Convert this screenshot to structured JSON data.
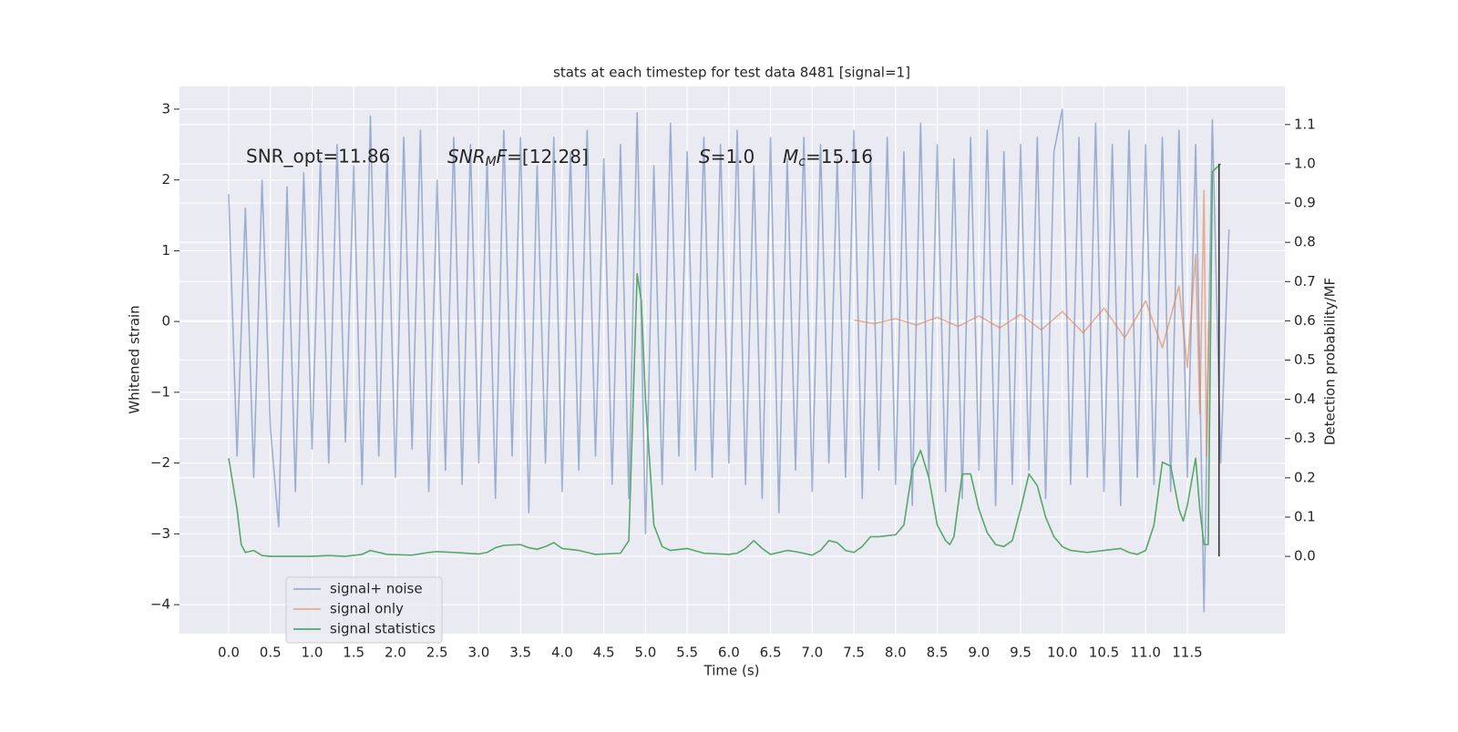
{
  "chart_data": {
    "type": "line",
    "title": "stats at each timestep for test data 8481 [signal=1]",
    "xlabel": "Time (s)",
    "ylabel": "Whitened strain",
    "y2label": "Detection probability/MF",
    "annotations": [
      "SNR_opt=11.86",
      [
        "SNR",
        "M",
        "F",
        "=[12.28]"
      ],
      [
        "S",
        "=1.0"
      ],
      [
        "M",
        "c",
        "=15.16"
      ]
    ],
    "xlim": [
      -0.59,
      12.67
    ],
    "ylim": [
      -4.41,
      3.32
    ],
    "y2lim": [
      -0.197,
      1.197
    ],
    "xticks": [
      {
        "value": 0,
        "label": "0.0"
      },
      {
        "value": 0.5,
        "label": "0.5"
      },
      {
        "value": 1,
        "label": "1.0"
      },
      {
        "value": 1.5,
        "label": "1.5"
      },
      {
        "value": 2,
        "label": "2.0"
      },
      {
        "value": 2.5,
        "label": "2.5"
      },
      {
        "value": 3,
        "label": "3.0"
      },
      {
        "value": 3.5,
        "label": "3.5"
      },
      {
        "value": 4,
        "label": "4.0"
      },
      {
        "value": 4.5,
        "label": "4.5"
      },
      {
        "value": 5,
        "label": "5.0"
      },
      {
        "value": 5.5,
        "label": "5.5"
      },
      {
        "value": 6,
        "label": "6.0"
      },
      {
        "value": 6.5,
        "label": "6.5"
      },
      {
        "value": 7,
        "label": "7.0"
      },
      {
        "value": 7.5,
        "label": "7.5"
      },
      {
        "value": 8,
        "label": "8.0"
      },
      {
        "value": 8.5,
        "label": "8.5"
      },
      {
        "value": 9,
        "label": "9.0"
      },
      {
        "value": 9.5,
        "label": "9.5"
      },
      {
        "value": 10,
        "label": "10.0"
      },
      {
        "value": 10.5,
        "label": "10.5"
      },
      {
        "value": 11,
        "label": "11.0"
      },
      {
        "value": 11.5,
        "label": "11.5"
      }
    ],
    "yticks": [
      {
        "value": -4,
        "label": "−4"
      },
      {
        "value": -3,
        "label": "−3"
      },
      {
        "value": -2,
        "label": "−2"
      },
      {
        "value": -1,
        "label": "−1"
      },
      0,
      1,
      2,
      3
    ],
    "y2ticks": [
      {
        "value": 0,
        "label": "0.0"
      },
      {
        "value": 0.1,
        "label": "0.1"
      },
      {
        "value": 0.2,
        "label": "0.2"
      },
      {
        "value": 0.3,
        "label": "0.3"
      },
      {
        "value": 0.4,
        "label": "0.4"
      },
      {
        "value": 0.5,
        "label": "0.5"
      },
      {
        "value": 0.6,
        "label": "0.6"
      },
      {
        "value": 0.7,
        "label": "0.7"
      },
      {
        "value": 0.8,
        "label": "0.8"
      },
      {
        "value": 0.9,
        "label": "0.9"
      },
      {
        "value": 1,
        "label": "1.0"
      },
      {
        "value": 1.1,
        "label": "1.1"
      }
    ],
    "grid": true,
    "series": [
      {
        "name": "signal+ noise",
        "color": "#4c72b0",
        "opacity": 0.5,
        "x": [
          0,
          0.1,
          0.2,
          0.3,
          0.4,
          0.5,
          0.6,
          0.7,
          0.8,
          0.9,
          1,
          1.1,
          1.2,
          1.3,
          1.4,
          1.5,
          1.6,
          1.7,
          1.8,
          1.9,
          2,
          2.1,
          2.2,
          2.3,
          2.4,
          2.5,
          2.6,
          2.7,
          2.8,
          2.9,
          3,
          3.1,
          3.2,
          3.3,
          3.4,
          3.5,
          3.6,
          3.7,
          3.8,
          3.9,
          4,
          4.1,
          4.2,
          4.3,
          4.4,
          4.5,
          4.6,
          4.7,
          4.8,
          4.9,
          5,
          5.1,
          5.2,
          5.3,
          5.4,
          5.5,
          5.6,
          5.7,
          5.8,
          5.9,
          6,
          6.1,
          6.2,
          6.3,
          6.4,
          6.5,
          6.6,
          6.7,
          6.8,
          6.9,
          7,
          7.1,
          7.2,
          7.3,
          7.4,
          7.5,
          7.6,
          7.7,
          7.8,
          7.9,
          8,
          8.1,
          8.2,
          8.3,
          8.4,
          8.5,
          8.6,
          8.7,
          8.8,
          8.9,
          9,
          9.1,
          9.2,
          9.3,
          9.4,
          9.5,
          9.6,
          9.7,
          9.8,
          9.9,
          10,
          10.1,
          10.2,
          10.3,
          10.4,
          10.5,
          10.6,
          10.7,
          10.8,
          10.9,
          11,
          11.1,
          11.2,
          11.3,
          11.4,
          11.5,
          11.6,
          11.7,
          11.8,
          11.9,
          12
        ],
        "values": [
          1.8,
          -1.9,
          1.6,
          -2.2,
          2.0,
          -1.5,
          -2.9,
          1.9,
          -2.4,
          2.1,
          -1.8,
          2.3,
          -2.0,
          2.5,
          -1.7,
          2.2,
          -2.3,
          2.9,
          -1.9,
          2.4,
          -2.2,
          2.6,
          -1.8,
          2.7,
          -2.4,
          2.0,
          -2.1,
          2.6,
          -2.3,
          2.5,
          -2.0,
          2.3,
          -2.5,
          2.7,
          -1.9,
          2.6,
          -2.7,
          2.2,
          -2.0,
          2.6,
          -2.4,
          2.4,
          -2.1,
          2.7,
          -1.9,
          2.3,
          -2.3,
          2.5,
          -2.5,
          2.95,
          -3.0,
          2.2,
          -2.3,
          2.8,
          -1.9,
          2.4,
          -2.1,
          2.6,
          -2.2,
          2.5,
          -2.0,
          2.7,
          -2.3,
          2.2,
          -2.5,
          2.6,
          -2.7,
          2.3,
          -2.1,
          2.6,
          -2.4,
          2.5,
          -2.0,
          2.3,
          -2.2,
          2.7,
          -2.5,
          2.4,
          -2.1,
          2.6,
          -2.3,
          2.4,
          -2.6,
          2.8,
          -2.2,
          2.5,
          -2.4,
          2.3,
          -2.5,
          2.6,
          -2.1,
          2.7,
          -2.6,
          2.4,
          -2.3,
          2.5,
          -2.1,
          2.6,
          -2.5,
          2.4,
          3.0,
          -2.3,
          2.6,
          -2.2,
          2.8,
          -2.4,
          2.5,
          -2.6,
          2.7,
          -2.2,
          2.5,
          -2.3,
          2.6,
          -2.4,
          2.7,
          -2.2,
          2.5,
          -4.1,
          2.85,
          -2.0,
          1.3
        ]
      },
      {
        "name": "signal only",
        "color": "#dd8452",
        "opacity": 0.6,
        "x": [
          7.5,
          7.75,
          8,
          8.25,
          8.5,
          8.75,
          9,
          9.25,
          9.5,
          9.75,
          10,
          10.25,
          10.5,
          10.75,
          11,
          11.2,
          11.4,
          11.5,
          11.6,
          11.65,
          11.7,
          11.73,
          11.76
        ],
        "values": [
          0.02,
          -0.03,
          0.04,
          -0.05,
          0.06,
          -0.07,
          0.08,
          -0.09,
          0.1,
          -0.12,
          0.14,
          -0.16,
          0.19,
          -0.23,
          0.29,
          -0.37,
          0.5,
          -0.65,
          0.95,
          -1.3,
          1.85,
          -1.9,
          0
        ]
      },
      {
        "name": "signal statistics",
        "color": "#55a868",
        "opacity": 1,
        "axis": "y2",
        "x": [
          0,
          0.1,
          0.15,
          0.2,
          0.3,
          0.4,
          0.5,
          0.7,
          1,
          1.2,
          1.4,
          1.6,
          1.7,
          1.9,
          2.2,
          2.4,
          2.5,
          2.7,
          3,
          3.1,
          3.2,
          3.3,
          3.5,
          3.6,
          3.7,
          3.8,
          3.9,
          4,
          4.2,
          4.4,
          4.7,
          4.8,
          4.9,
          4.95,
          5,
          5.1,
          5.2,
          5.3,
          5.5,
          5.7,
          6,
          6.1,
          6.2,
          6.3,
          6.4,
          6.5,
          6.7,
          6.8,
          7,
          7.1,
          7.2,
          7.3,
          7.4,
          7.5,
          7.6,
          7.7,
          7.8,
          8,
          8.1,
          8.2,
          8.3,
          8.4,
          8.5,
          8.6,
          8.65,
          8.7,
          8.8,
          8.9,
          9,
          9.1,
          9.2,
          9.3,
          9.4,
          9.5,
          9.6,
          9.7,
          9.8,
          9.9,
          10,
          10.1,
          10.3,
          10.5,
          10.7,
          10.8,
          10.9,
          11,
          11.1,
          11.2,
          11.3,
          11.4,
          11.45,
          11.5,
          11.6,
          11.65,
          11.7,
          11.75,
          11.8,
          11.85,
          11.9
        ],
        "values": [
          0.25,
          0.12,
          0.03,
          0.01,
          0.015,
          0.002,
          0,
          0,
          0,
          0.002,
          0,
          0.005,
          0.015,
          0.005,
          0.003,
          0.01,
          0.012,
          0.01,
          0.006,
          0.01,
          0.022,
          0.028,
          0.03,
          0.022,
          0.018,
          0.025,
          0.035,
          0.02,
          0.015,
          0.005,
          0.008,
          0.04,
          0.72,
          0.65,
          0.4,
          0.08,
          0.025,
          0.015,
          0.02,
          0.008,
          0.005,
          0.008,
          0.02,
          0.04,
          0.02,
          0.005,
          0.015,
          0.012,
          0.003,
          0.015,
          0.04,
          0.035,
          0.015,
          0.01,
          0.025,
          0.05,
          0.05,
          0.055,
          0.08,
          0.22,
          0.27,
          0.2,
          0.08,
          0.04,
          0.03,
          0.05,
          0.21,
          0.21,
          0.12,
          0.06,
          0.03,
          0.025,
          0.04,
          0.12,
          0.21,
          0.18,
          0.1,
          0.05,
          0.025,
          0.015,
          0.01,
          0.015,
          0.02,
          0.01,
          0.005,
          0.015,
          0.08,
          0.24,
          0.23,
          0.12,
          0.09,
          0.13,
          0.25,
          0.12,
          0.03,
          0.03,
          0.98,
          0.99,
          1.0
        ]
      }
    ],
    "vline": {
      "x": 11.88,
      "y2": [
        0,
        1.0
      ],
      "color": "#333333"
    }
  }
}
